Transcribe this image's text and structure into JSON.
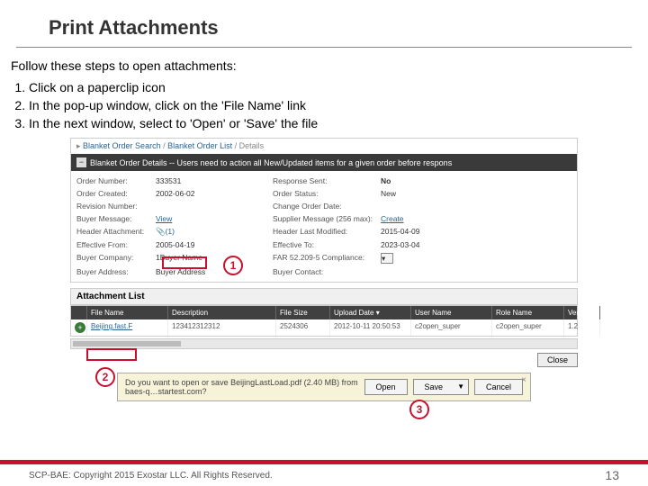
{
  "title": "Print Attachments",
  "intro": "Follow these steps to open attachments:",
  "steps": [
    "Click on a paperclip icon",
    "In the pop-up window, click on the 'File Name' link",
    "In the next window, select to 'Open' or 'Save' the file"
  ],
  "breadcrumb": {
    "a": "Blanket Order Search",
    "b": "Blanket Order List",
    "c": "Details"
  },
  "section_title": "Blanket Order Details -- Users need to action all New/Updated items for a given order before respons",
  "details": {
    "left": [
      {
        "label": "Order Number:",
        "value": "333531"
      },
      {
        "label": "Order Created:",
        "value": "2002-06-02"
      },
      {
        "label": "Revision Number:",
        "value": ""
      },
      {
        "label": "Buyer Message:",
        "value": "View",
        "link": true
      },
      {
        "label": "Header Attachment:",
        "value": "📎(1)",
        "paperclip": true
      },
      {
        "label": "Effective From:",
        "value": "2005-04-19"
      },
      {
        "label": "Buyer Company:",
        "value": "1Buyer Name"
      },
      {
        "label": "Buyer Address:",
        "value": "Buyer Address"
      }
    ],
    "right": [
      {
        "label": "Response Sent:",
        "value": "No",
        "bold": true
      },
      {
        "label": "Order Status:",
        "value": "New"
      },
      {
        "label": "Change Order Date:",
        "value": ""
      },
      {
        "label": "Supplier Message (256 max):",
        "value": "Create",
        "link": true
      },
      {
        "label": "Header Last Modified:",
        "value": "2015-04-09"
      },
      {
        "label": "Effective To:",
        "value": "2023-03-04"
      },
      {
        "label": "FAR 52.209-5 Compliance:",
        "value": "▾",
        "box": true
      },
      {
        "label": "Buyer Contact:",
        "value": ""
      }
    ]
  },
  "attach_list_title": "Attachment List",
  "attach_columns": [
    "",
    "File Name",
    "Description",
    "File Size",
    "Upload Date ▾",
    "User Name",
    "Role Name",
    "Version"
  ],
  "attach_row": [
    "",
    "Beijing.fast.F",
    "123412312312",
    "2524306",
    "2012-10-11 20:50:53",
    "c2open_super",
    "c2open_super",
    "1.2"
  ],
  "close_label": "Close",
  "download": {
    "question": "Do you want to open or save BeijingLastLoad.pdf (2.40 MB) from baes-q…startest.com?",
    "open": "Open",
    "save": "Save",
    "cancel": "Cancel"
  },
  "callouts": {
    "c1": "1",
    "c2": "2",
    "c3": "3"
  },
  "footer": "SCP-BAE: Copyright 2015 Exostar LLC. All Rights Reserved.",
  "page": "13",
  "colors": {
    "accent": "#c8102e"
  }
}
